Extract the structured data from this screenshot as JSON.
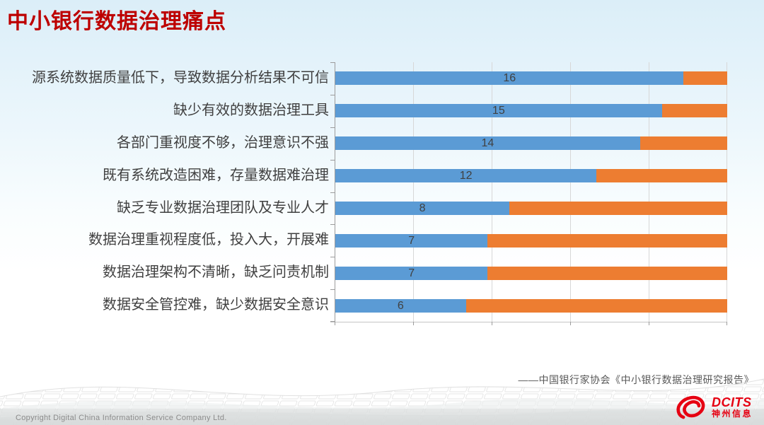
{
  "slide": {
    "title": "中小银行数据治理痛点",
    "source_attribution": "——中国银行家协会《中小银行数据治理研究报告》",
    "footer": {
      "copyright": "Copyright  Digital China Information Service Company Ltd."
    },
    "logo": {
      "brand": "DCITS",
      "brand_cn": "神州信息"
    }
  },
  "chart_data": {
    "type": "bar",
    "orientation": "horizontal",
    "stacked": true,
    "title": "",
    "xlabel": "",
    "ylabel": "",
    "xlim": [
      0,
      18
    ],
    "bar_total": 18,
    "gridline_count": 6,
    "legend": "none",
    "categories": [
      "源系统数据质量低下，导致数据分析结果不可信",
      "缺少有效的数据治理工具",
      "各部门重视度不够，治理意识不强",
      "既有系统改造困难，存量数据难治理",
      "缺乏专业数据治理团队及专业人才",
      "数据治理重视程度低，投入大，开展难",
      "数据治理架构不清晰，缺乏问责机制",
      "数据安全管控难，缺少数据安全意识"
    ],
    "series": [
      {
        "name": "blue",
        "color": "#5b9bd5",
        "values": [
          16,
          15,
          14,
          12,
          8,
          7,
          7,
          6
        ]
      },
      {
        "name": "orange",
        "color": "#ed7d31",
        "values": [
          2,
          3,
          4,
          6,
          10,
          11,
          11,
          12
        ]
      }
    ],
    "value_labels": [
      "16",
      "15",
      "14",
      "12",
      "8",
      "7",
      "7",
      "6"
    ]
  },
  "colors": {
    "title": "#bd0000",
    "bar_blue": "#5b9bd5",
    "bar_orange": "#ed7d31",
    "gridline": "#d7d7d7",
    "axis": "#9c9c9c",
    "label_text": "#404040",
    "source_text": "#595959",
    "footer_text": "#8c8c8c",
    "logo_red": "#e60012"
  }
}
